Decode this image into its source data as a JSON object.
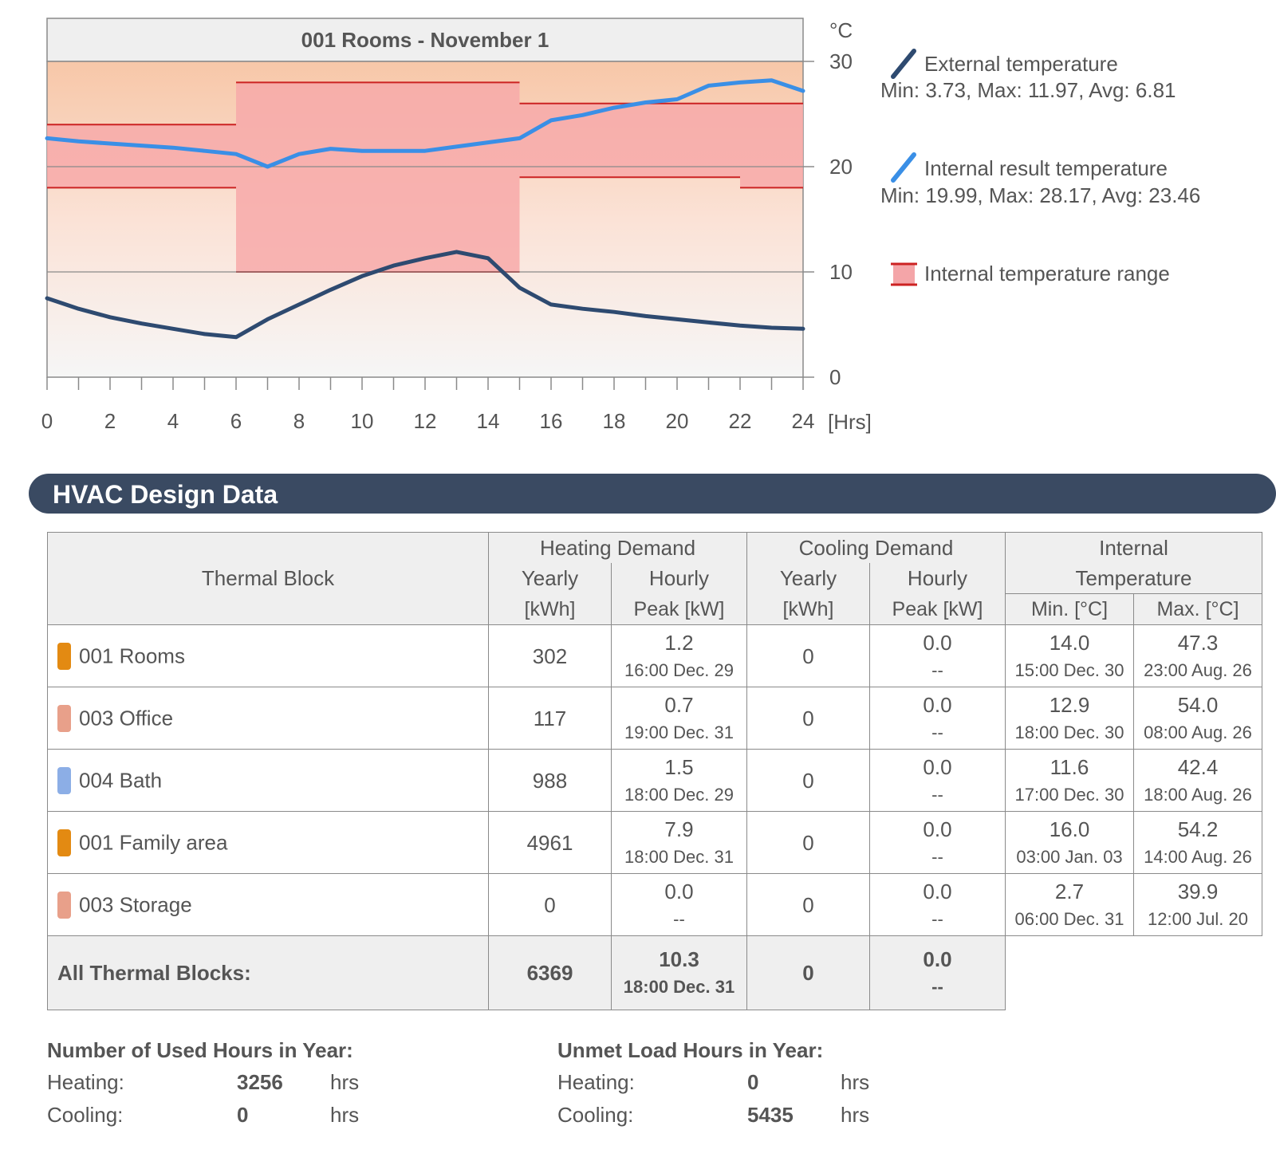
{
  "chart_data": {
    "type": "line",
    "title": "001 Rooms - November 1",
    "xlabel": "[Hrs]",
    "ylabel": "°C",
    "xlim": [
      0,
      24
    ],
    "ylim": [
      0,
      30
    ],
    "x_ticks": [
      0,
      2,
      4,
      6,
      8,
      10,
      12,
      14,
      16,
      18,
      20,
      22,
      24
    ],
    "y_ticks": [
      0,
      10,
      20,
      30
    ],
    "series": [
      {
        "name": "External temperature",
        "stats": "Min: 3.73, Max: 11.97, Avg: 6.81",
        "color": "#2e4a70",
        "x": [
          0,
          1,
          2,
          3,
          4,
          5,
          6,
          7,
          8,
          9,
          10,
          11,
          12,
          13,
          14,
          15,
          16,
          17,
          18,
          19,
          20,
          21,
          22,
          23,
          24
        ],
        "values": [
          7.5,
          6.5,
          5.7,
          5.1,
          4.6,
          4.1,
          3.8,
          5.5,
          6.9,
          8.3,
          9.6,
          10.6,
          11.3,
          11.9,
          11.3,
          8.5,
          6.9,
          6.5,
          6.2,
          5.8,
          5.5,
          5.2,
          4.9,
          4.7,
          4.6
        ]
      },
      {
        "name": "Internal result temperature",
        "stats": "Min: 19.99, Max: 28.17, Avg: 23.46",
        "color": "#3a8fe6",
        "x": [
          0,
          1,
          2,
          3,
          4,
          5,
          6,
          7,
          8,
          9,
          10,
          11,
          12,
          13,
          14,
          15,
          16,
          17,
          18,
          19,
          20,
          21,
          22,
          23,
          24
        ],
        "values": [
          22.7,
          22.4,
          22.2,
          22.0,
          21.8,
          21.5,
          21.2,
          20.0,
          21.2,
          21.7,
          21.5,
          21.5,
          21.5,
          21.9,
          22.3,
          22.7,
          24.4,
          24.9,
          25.6,
          26.1,
          26.4,
          27.7,
          28.0,
          28.2,
          27.2
        ]
      }
    ],
    "range": {
      "name": "Internal temperature range",
      "color": "#e53935",
      "segments": [
        {
          "x0": 0,
          "x1": 6,
          "low": 18,
          "high": 24
        },
        {
          "x0": 6,
          "x1": 15,
          "low": 10,
          "high": 28
        },
        {
          "x0": 15,
          "x1": 22,
          "low": 19,
          "high": 26
        },
        {
          "x0": 22,
          "x1": 24,
          "low": 18,
          "high": 26
        }
      ]
    }
  },
  "section": {
    "title": "HVAC Design Data"
  },
  "table": {
    "header": {
      "thermal_block": "Thermal Block",
      "heating": "Heating Demand",
      "cooling": "Cooling Demand",
      "internal_1": "Internal",
      "internal_2": "Temperature",
      "yearly": "Yearly",
      "hourly": "Hourly",
      "kwh": "[kWh]",
      "peak_kw": "Peak [kW]",
      "min": "Min. [°C]",
      "max": "Max. [°C]"
    },
    "rows": [
      {
        "name": "001 Rooms",
        "color": "#e38a12",
        "heat_yearly": "302",
        "heat_peak": "1.2",
        "heat_peak_time": "16:00 Dec. 29",
        "cool_yearly": "0",
        "cool_peak": "0.0",
        "cool_peak_time": "--",
        "min": "14.0",
        "min_time": "15:00 Dec. 30",
        "max": "47.3",
        "max_time": "23:00 Aug. 26"
      },
      {
        "name": "003 Office",
        "color": "#e8a08a",
        "heat_yearly": "117",
        "heat_peak": "0.7",
        "heat_peak_time": "19:00 Dec. 31",
        "cool_yearly": "0",
        "cool_peak": "0.0",
        "cool_peak_time": "--",
        "min": "12.9",
        "min_time": "18:00 Dec. 30",
        "max": "54.0",
        "max_time": "08:00 Aug. 26"
      },
      {
        "name": "004 Bath",
        "color": "#8caee6",
        "heat_yearly": "988",
        "heat_peak": "1.5",
        "heat_peak_time": "18:00 Dec. 29",
        "cool_yearly": "0",
        "cool_peak": "0.0",
        "cool_peak_time": "--",
        "min": "11.6",
        "min_time": "17:00 Dec. 30",
        "max": "42.4",
        "max_time": "18:00 Aug. 26"
      },
      {
        "name": "001 Family area",
        "color": "#e38a12",
        "heat_yearly": "4961",
        "heat_peak": "7.9",
        "heat_peak_time": "18:00 Dec. 31",
        "cool_yearly": "0",
        "cool_peak": "0.0",
        "cool_peak_time": "--",
        "min": "16.0",
        "min_time": "03:00 Jan. 03",
        "max": "54.2",
        "max_time": "14:00 Aug. 26"
      },
      {
        "name": "003 Storage",
        "color": "#e8a08a",
        "heat_yearly": "0",
        "heat_peak": "0.0",
        "heat_peak_time": "--",
        "cool_yearly": "0",
        "cool_peak": "0.0",
        "cool_peak_time": "--",
        "min": "2.7",
        "min_time": "06:00 Dec. 31",
        "max": "39.9",
        "max_time": "12:00 Jul. 20"
      }
    ],
    "total": {
      "label": "All Thermal Blocks:",
      "heat_yearly": "6369",
      "heat_peak": "10.3",
      "heat_peak_time": "18:00 Dec. 31",
      "cool_yearly": "0",
      "cool_peak": "0.0",
      "cool_peak_time": "--"
    }
  },
  "used_hours": {
    "title": "Number of Used Hours in Year:",
    "heating_label": "Heating:",
    "heating_value": "3256",
    "heating_unit": "hrs",
    "cooling_label": "Cooling:",
    "cooling_value": "0",
    "cooling_unit": "hrs"
  },
  "unmet_hours": {
    "title": "Unmet Load Hours in Year:",
    "heating_label": "Heating:",
    "heating_value": "0",
    "heating_unit": "hrs",
    "cooling_label": "Cooling:",
    "cooling_value": "5435",
    "cooling_unit": "hrs"
  }
}
